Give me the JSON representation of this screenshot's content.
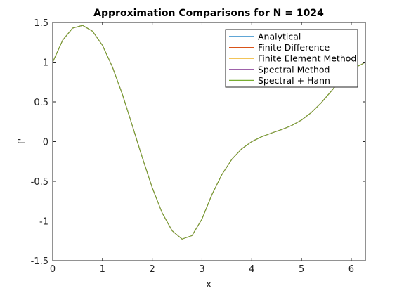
{
  "chart_data": {
    "type": "line",
    "title": "Approximation Comparisons for N = 1024",
    "xlabel": "x",
    "ylabel": "f'",
    "xlim": [
      0,
      6.2832
    ],
    "ylim": [
      -1.5,
      1.5
    ],
    "xticks": [
      0,
      1,
      2,
      3,
      4,
      5,
      6
    ],
    "xtick_labels": [
      "0",
      "1",
      "2",
      "3",
      "4",
      "5",
      "6"
    ],
    "yticks": [
      -1.5,
      -1,
      -0.5,
      0,
      0.5,
      1,
      1.5
    ],
    "ytick_labels": [
      "-1.5",
      "-1",
      "-0.5",
      "0",
      "0.5",
      "1",
      "1.5"
    ],
    "grid": false,
    "legend_position": "top-right",
    "x": [
      0,
      0.2,
      0.4,
      0.6,
      0.8,
      1.0,
      1.2,
      1.4,
      1.6,
      1.8,
      2.0,
      2.2,
      2.4,
      2.6,
      2.8,
      3.0,
      3.2,
      3.4,
      3.6,
      3.8,
      4.0,
      4.2,
      4.4,
      4.6,
      4.8,
      5.0,
      5.2,
      5.4,
      5.6,
      5.8,
      6.0,
      6.2,
      6.2832
    ],
    "series": [
      {
        "name": "Analytical",
        "color": "#0072bd",
        "values": [
          1.0,
          1.277,
          1.429,
          1.464,
          1.39,
          1.212,
          0.94,
          0.595,
          0.203,
          -0.201,
          -0.579,
          -0.898,
          -1.124,
          -1.228,
          -1.184,
          -0.974,
          -0.668,
          -0.415,
          -0.222,
          -0.09,
          0.0,
          0.062,
          0.108,
          0.151,
          0.202,
          0.272,
          0.367,
          0.49,
          0.637,
          0.788,
          0.909,
          0.97,
          1.0
        ]
      },
      {
        "name": "Finite Difference",
        "color": "#d95319",
        "values": [
          1.0,
          1.277,
          1.429,
          1.464,
          1.39,
          1.212,
          0.94,
          0.595,
          0.203,
          -0.201,
          -0.579,
          -0.898,
          -1.124,
          -1.228,
          -1.184,
          -0.974,
          -0.668,
          -0.415,
          -0.222,
          -0.09,
          0.0,
          0.062,
          0.108,
          0.151,
          0.202,
          0.272,
          0.367,
          0.49,
          0.637,
          0.788,
          0.909,
          0.97,
          1.0
        ]
      },
      {
        "name": "Finite Element Method",
        "color": "#edb120",
        "values": [
          1.0,
          1.277,
          1.429,
          1.464,
          1.39,
          1.212,
          0.94,
          0.595,
          0.203,
          -0.201,
          -0.579,
          -0.898,
          -1.124,
          -1.228,
          -1.184,
          -0.974,
          -0.668,
          -0.415,
          -0.222,
          -0.09,
          0.0,
          0.062,
          0.108,
          0.151,
          0.202,
          0.272,
          0.367,
          0.49,
          0.637,
          0.788,
          0.909,
          0.97,
          1.0
        ]
      },
      {
        "name": "Spectral Method",
        "color": "#7e2f8e",
        "values": [
          1.0,
          1.277,
          1.429,
          1.464,
          1.39,
          1.212,
          0.94,
          0.595,
          0.203,
          -0.201,
          -0.579,
          -0.898,
          -1.124,
          -1.228,
          -1.184,
          -0.974,
          -0.668,
          -0.415,
          -0.222,
          -0.09,
          0.0,
          0.062,
          0.108,
          0.151,
          0.202,
          0.272,
          0.367,
          0.49,
          0.637,
          0.788,
          0.909,
          0.97,
          1.0
        ]
      },
      {
        "name": "Spectral + Hann",
        "color": "#77ac30",
        "values": [
          1.0,
          1.277,
          1.429,
          1.464,
          1.39,
          1.212,
          0.94,
          0.595,
          0.203,
          -0.201,
          -0.579,
          -0.898,
          -1.124,
          -1.228,
          -1.184,
          -0.974,
          -0.668,
          -0.415,
          -0.222,
          -0.09,
          0.0,
          0.062,
          0.108,
          0.151,
          0.202,
          0.272,
          0.367,
          0.49,
          0.637,
          0.788,
          0.909,
          0.97,
          1.0
        ]
      }
    ]
  }
}
